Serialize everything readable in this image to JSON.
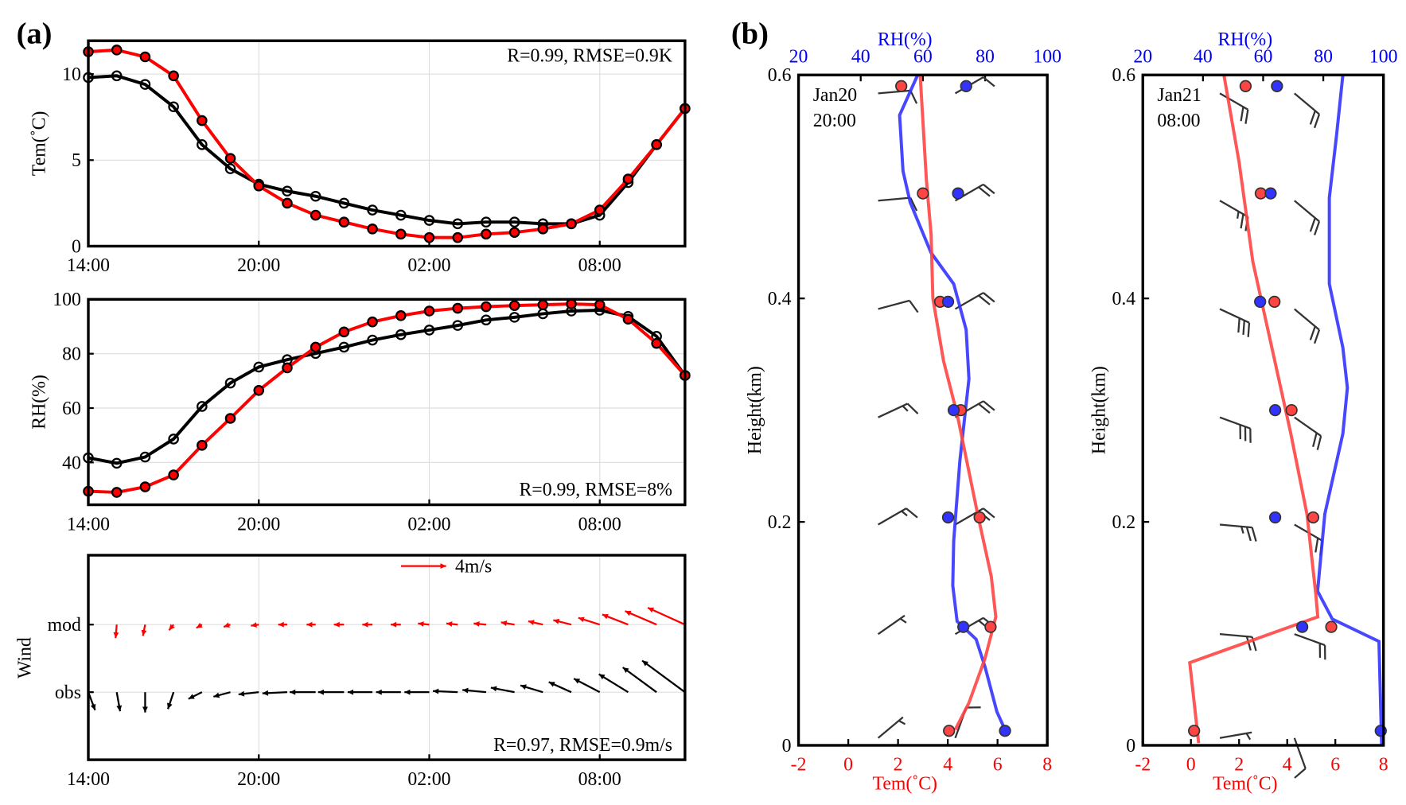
{
  "colors": {
    "model": "#ff0000",
    "obs": "#000000",
    "rh": "#3333ff",
    "tem_profile": "#ff4444",
    "grid": "#dddddd"
  },
  "chart_data": [
    {
      "id": "a-tem",
      "type": "line",
      "panel_label": "(a)",
      "ylabel": "Tem(˚C)",
      "ylim": [
        0,
        12
      ],
      "yticks": [
        0,
        5,
        10
      ],
      "x": [
        "14:00",
        "15:00",
        "16:00",
        "17:00",
        "18:00",
        "19:00",
        "20:00",
        "21:00",
        "22:00",
        "23:00",
        "00:00",
        "01:00",
        "02:00",
        "03:00",
        "04:00",
        "05:00",
        "06:00",
        "07:00",
        "08:00",
        "09:00",
        "10:00",
        "11:00"
      ],
      "xticks": [
        "14:00",
        "20:00",
        "02:00",
        "08:00"
      ],
      "annotation": "R=0.99, RMSE=0.9K",
      "series": [
        {
          "name": "mod",
          "values": [
            11.3,
            11.4,
            11.0,
            9.9,
            7.3,
            5.1,
            3.5,
            2.5,
            1.8,
            1.4,
            1.0,
            0.7,
            0.5,
            0.5,
            0.7,
            0.8,
            1.0,
            1.3,
            2.1,
            3.9,
            5.9,
            8.0
          ]
        },
        {
          "name": "obs",
          "values": [
            9.8,
            9.9,
            9.4,
            8.1,
            5.9,
            4.5,
            3.6,
            3.2,
            2.9,
            2.5,
            2.1,
            1.8,
            1.5,
            1.3,
            1.4,
            1.4,
            1.3,
            1.3,
            1.8,
            3.7,
            5.9,
            8.0
          ]
        }
      ]
    },
    {
      "id": "a-rh",
      "type": "line",
      "ylabel": "RH(%)",
      "ylim": [
        25,
        100
      ],
      "yticks": [
        40,
        60,
        80,
        100
      ],
      "xticks": [
        "14:00",
        "20:00",
        "02:00",
        "08:00"
      ],
      "annotation": "R=0.99, RMSE=8%",
      "series": [
        {
          "name": "mod",
          "values": [
            29.4,
            29.0,
            31.0,
            35.4,
            46.3,
            56.2,
            66.5,
            74.8,
            82.4,
            88.0,
            91.7,
            94.0,
            95.7,
            96.7,
            97.3,
            97.7,
            98.0,
            98.3,
            98.0,
            92.7,
            83.8,
            72.0
          ]
        },
        {
          "name": "obs",
          "values": [
            41.7,
            39.7,
            42.0,
            48.6,
            60.6,
            69.2,
            75.1,
            77.8,
            80.1,
            82.4,
            85.0,
            87.0,
            88.7,
            90.4,
            92.4,
            93.4,
            94.7,
            95.7,
            96.0,
            93.7,
            86.4,
            72.0
          ]
        }
      ]
    },
    {
      "id": "a-wind",
      "type": "vector",
      "ylabel": "Wind",
      "yticks": [
        "mod",
        "obs"
      ],
      "xticks": [
        "14:00",
        "20:00",
        "02:00",
        "08:00"
      ],
      "key_label": "4m/s",
      "key_value": 4,
      "annotation": "R=0.97, RMSE=0.9m/s",
      "series": [
        {
          "name": "mod",
          "u": [
            0,
            -0.1,
            -0.2,
            -0.4,
            -0.5,
            -0.6,
            -0.7,
            -0.8,
            -0.8,
            -0.9,
            -0.9,
            -0.9,
            -1.0,
            -1.0,
            -1.1,
            -1.2,
            -1.3,
            -1.6,
            -1.9,
            -2.3,
            -2.8,
            -3.3
          ],
          "v": [
            0,
            -1.2,
            -1.0,
            -0.5,
            -0.3,
            -0.2,
            -0.1,
            0,
            0,
            0,
            0,
            0,
            0.1,
            0.1,
            0.1,
            0.2,
            0.3,
            0.4,
            0.6,
            0.9,
            1.2,
            1.5
          ]
        },
        {
          "name": "obs",
          "u": [
            0.6,
            0.3,
            0,
            -0.5,
            -1.2,
            -1.5,
            -1.8,
            -2.2,
            -2.3,
            -2.3,
            -2.2,
            -2.2,
            -2.2,
            -2.2,
            -2.1,
            -2.1,
            -2.0,
            -2.0,
            -2.3,
            -2.6,
            -3.0,
            -3.8
          ],
          "v": [
            -1.6,
            -1.7,
            -1.8,
            -1.5,
            -0.6,
            -0.4,
            -0.2,
            -0.1,
            0,
            0,
            0,
            0,
            0,
            0.1,
            0.2,
            0.4,
            0.6,
            0.9,
            1.2,
            1.6,
            2.2,
            2.8
          ]
        }
      ]
    },
    {
      "id": "b-jan20",
      "type": "profile",
      "panel_label": "(b)",
      "annotation": [
        "Jan20",
        "20:00"
      ],
      "ylabel": "Height(km)",
      "ylim": [
        0,
        0.6
      ],
      "yticks": [
        "0",
        "0.2",
        "0.4",
        "0.6"
      ],
      "xlabel_bottom": "Tem(˚C)",
      "xlim_bottom": [
        -2,
        8
      ],
      "xticks_bottom": [
        -2,
        0,
        2,
        4,
        6,
        8
      ],
      "xlabel_top": "RH(%)",
      "xlim_top": [
        20,
        100
      ],
      "xticks_top": [
        20,
        40,
        60,
        80,
        100
      ],
      "tem_mod": {
        "h": [
          0.6,
          0.506,
          0.457,
          0.4,
          0.344,
          0.296,
          0.207,
          0.151,
          0.115,
          0.078,
          0.038,
          0.014
        ],
        "t": [
          2.89,
          3.14,
          3.33,
          3.4,
          3.83,
          4.38,
          5.2,
          5.75,
          5.93,
          5.5,
          4.85,
          4.3
        ]
      },
      "rh_mod": {
        "h": [
          0.6,
          0.564,
          0.514,
          0.486,
          0.441,
          0.413,
          0.372,
          0.328,
          0.255,
          0.183,
          0.143,
          0.111,
          0.095,
          0.07,
          0.03,
          0.014
        ],
        "rh": [
          58.3,
          52.5,
          53.6,
          55.9,
          62.6,
          69.9,
          73.9,
          74.8,
          71.9,
          69.9,
          69.6,
          71.0,
          77.1,
          80.0,
          83.8,
          86.4
        ]
      },
      "obs": {
        "h": [
          0.59,
          0.494,
          0.397,
          0.3,
          0.204,
          0.106,
          0.013
        ],
        "t": [
          2.13,
          3.0,
          3.69,
          4.52,
          5.28,
          5.72,
          4.05
        ],
        "rh": [
          73.9,
          71.3,
          68.1,
          69.9,
          68.1,
          73.0,
          86.4
        ]
      },
      "barbs_left": {
        "h": [
          0.59,
          0.494,
          0.397,
          0.3,
          0.204,
          0.106,
          0.013
        ],
        "dir": [
          85,
          85,
          75,
          65,
          60,
          55,
          50
        ],
        "full": [
          1,
          1,
          1,
          1,
          1,
          0,
          0
        ],
        "half": [
          0,
          0,
          0,
          1,
          1,
          1,
          1
        ]
      },
      "barbs_right": {
        "h": [
          0.59,
          0.494,
          0.397,
          0.3,
          0.204,
          0.106,
          0.013
        ],
        "dir": [
          60,
          60,
          60,
          60,
          60,
          60,
          20
        ],
        "full": [
          1,
          2,
          2,
          2,
          2,
          2,
          1
        ],
        "half": [
          0,
          0,
          0,
          0,
          0,
          0,
          0
        ]
      }
    },
    {
      "id": "b-jan21",
      "type": "profile",
      "annotation": [
        "Jan21",
        "08:00"
      ],
      "ylabel": "Height(km)",
      "ylim": [
        0,
        0.6
      ],
      "yticks": [
        "0",
        "0.2",
        "0.4",
        "0.6"
      ],
      "xlabel_bottom": "Tem(˚C)",
      "xlim_bottom": [
        -2,
        8
      ],
      "xticks_bottom": [
        -2,
        0,
        2,
        4,
        6,
        8
      ],
      "xlabel_top": "RH(%)",
      "xlim_top": [
        20,
        100
      ],
      "xticks_top": [
        20,
        40,
        60,
        80,
        100
      ],
      "tem_mod": {
        "h": [
          0.6,
          0.522,
          0.433,
          0.36,
          0.28,
          0.207,
          0.135,
          0.115,
          0.074,
          0.002
        ],
        "t": [
          1.37,
          2.0,
          2.57,
          3.32,
          4.14,
          4.82,
          5.19,
          5.27,
          -0.05,
          0.32
        ]
      },
      "rh_mod": {
        "h": [
          0.6,
          0.546,
          0.49,
          0.413,
          0.356,
          0.32,
          0.279,
          0.207,
          0.138,
          0.113,
          0.093,
          0.0
        ],
        "rh": [
          86.5,
          84.4,
          82.0,
          82.0,
          86.5,
          88.0,
          86.5,
          80.5,
          78.1,
          83.0,
          98.5,
          99.4
        ]
      },
      "obs": {
        "h": [
          0.59,
          0.494,
          0.397,
          0.3,
          0.204,
          0.106,
          0.013
        ],
        "t": [
          2.27,
          2.9,
          3.47,
          4.18,
          5.08,
          5.83,
          0.13
        ],
        "rh": [
          64.6,
          62.5,
          59.0,
          64.0,
          64.0,
          73.0,
          99.1
        ]
      },
      "barbs_left": {
        "h": [
          0.59,
          0.494,
          0.397,
          0.3,
          0.204,
          0.106,
          0.013
        ],
        "dir": [
          120,
          120,
          115,
          110,
          95,
          95,
          80
        ],
        "full": [
          2,
          2,
          3,
          3,
          2,
          2,
          0
        ],
        "half": [
          0,
          1,
          0,
          0,
          1,
          0,
          1
        ]
      },
      "barbs_right": {
        "h": [
          0.59,
          0.494,
          0.397,
          0.3,
          0.204,
          0.106,
          0.013
        ],
        "dir": [
          130,
          130,
          130,
          125,
          120,
          110,
          160
        ],
        "full": [
          2,
          2,
          2,
          2,
          2,
          2,
          1
        ],
        "half": [
          0,
          0,
          0,
          0,
          0,
          0,
          0
        ]
      }
    }
  ]
}
